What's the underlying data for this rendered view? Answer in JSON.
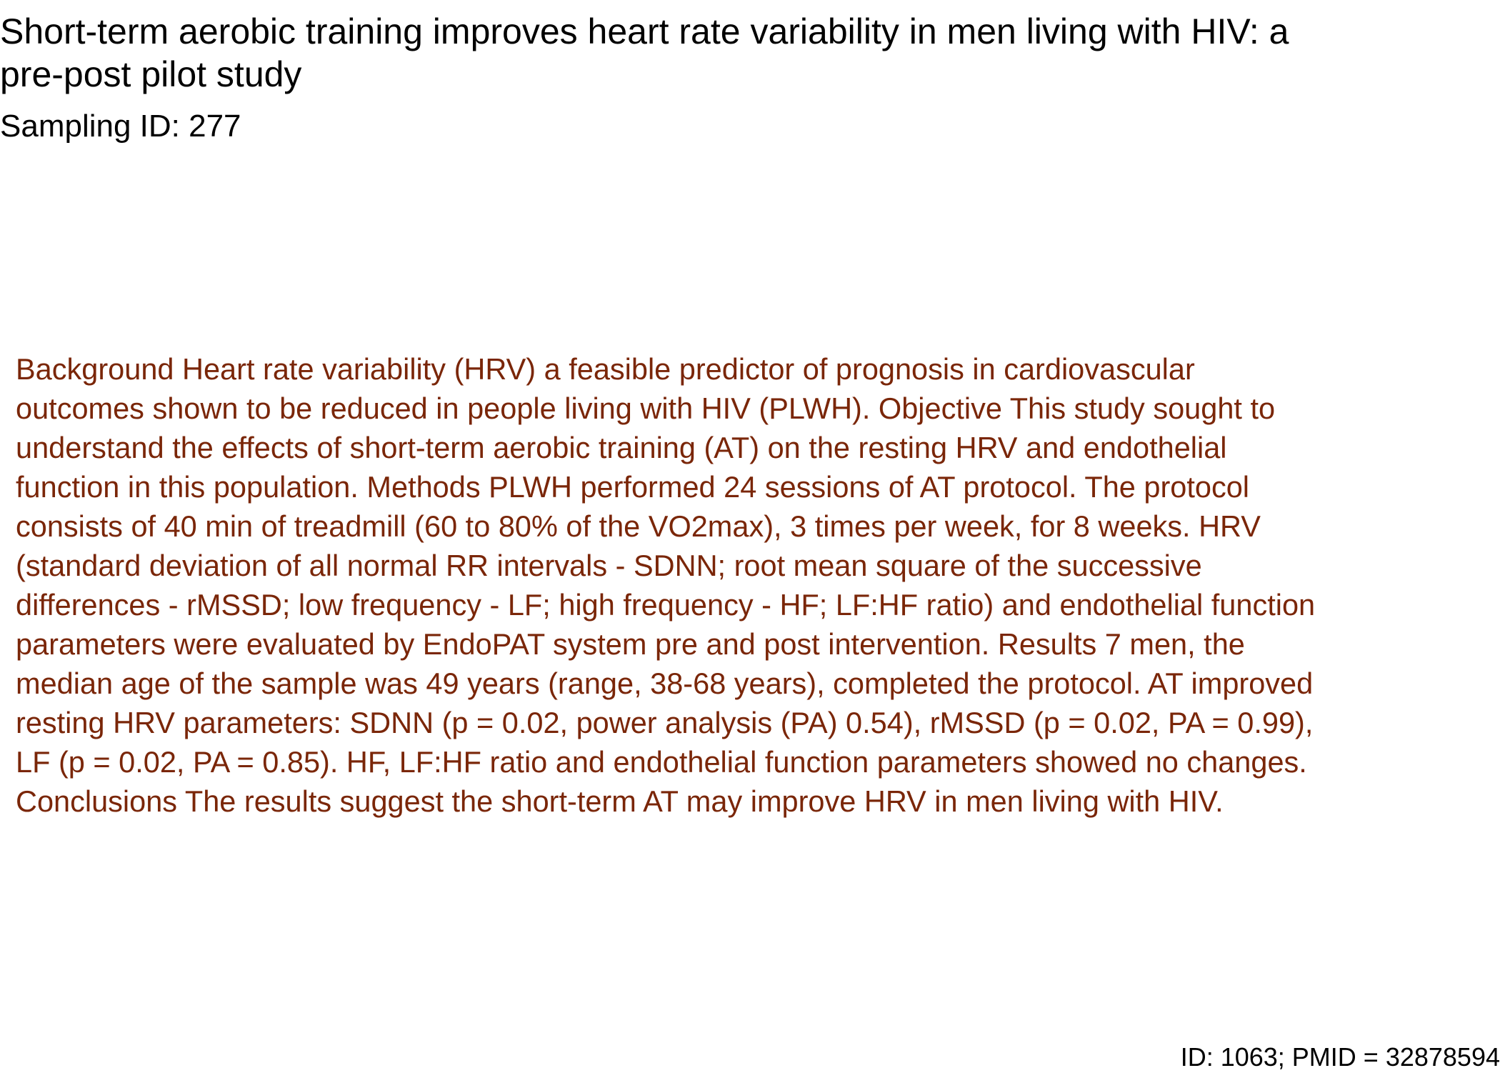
{
  "paper": {
    "title": "Short-term aerobic training improves heart rate variability in men living with HIV: a pre-post pilot study",
    "sampling_id": "Sampling ID: 277",
    "abstract_lines": [
      "Background Heart rate variability (HRV) a feasible predictor of prognosis in cardiovascular",
      "outcomes shown to be reduced in people living with HIV (PLWH). Objective This study sought to",
      "understand the effects of short-term aerobic training (AT) on the resting HRV and endothelial",
      "function in this population. Methods PLWH performed 24 sessions of AT protocol. The protocol",
      "consists of 40 min of treadmill (60 to 80% of the VO2max), 3 times per week, for 8 weeks. HRV",
      "(standard deviation of all normal RR intervals - SDNN; root mean square of the successive",
      "differences - rMSSD; low frequency - LF; high frequency - HF; LF:HF ratio) and endothelial function",
      "parameters were evaluated by EndoPAT system pre and post intervention. Results 7 men, the",
      "median age of the sample was 49 years (range, 38-68 years), completed the protocol. AT improved",
      "resting HRV parameters: SDNN (p = 0.02, power analysis (PA) 0.54), rMSSD (p = 0.02, PA = 0.99),",
      "LF (p = 0.02, PA = 0.85). HF, LF:HF ratio and endothelial function parameters showed no changes.",
      "Conclusions The results suggest the short-term AT may improve HRV in men living with HIV."
    ],
    "footer_id": "ID: 1063; PMID = 32878594"
  },
  "colors": {
    "abstract_text": "#7a2608",
    "title_text": "#000000",
    "background": "#ffffff"
  }
}
